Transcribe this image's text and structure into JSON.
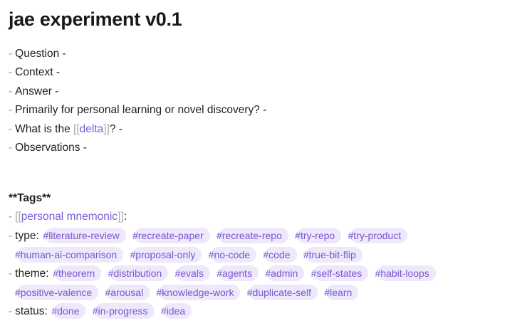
{
  "title": "jae experiment v0.1",
  "fields": [
    {
      "text": "Question -"
    },
    {
      "text": "Context -"
    },
    {
      "text": "Answer -"
    },
    {
      "text": "Primarily for personal learning or novel discovery? -"
    },
    {
      "prefix": "What is the ",
      "link": "delta",
      "suffix": "? -"
    },
    {
      "text": "Observations -"
    }
  ],
  "tags_heading": "**Tags**",
  "mnemonic": {
    "link": "personal mnemonic",
    "suffix": ":"
  },
  "type": {
    "label": "type:",
    "tags": [
      "#literature-review",
      "#recreate-paper",
      "#recreate-repo",
      "#try-repo",
      "#try-product",
      "#human-ai-comparison",
      "#proposal-only",
      "#no-code",
      "#code",
      "#true-bit-flip"
    ]
  },
  "theme": {
    "label": "theme:",
    "tags": [
      "#theorem",
      "#distribution",
      "#evals",
      "#agents",
      "#admin",
      "#self-states",
      "#habit-loops",
      "#positive-valence",
      "#arousal",
      "#knowledge-work",
      "#duplicate-self",
      "#learn"
    ]
  },
  "status": {
    "label": "status:",
    "tags": [
      "#done",
      "#in-progress",
      "#idea"
    ]
  },
  "colors": {
    "link": "#7c5bd6",
    "tag_bg": "#ede8fa",
    "tag_text": "#7a56d2"
  }
}
